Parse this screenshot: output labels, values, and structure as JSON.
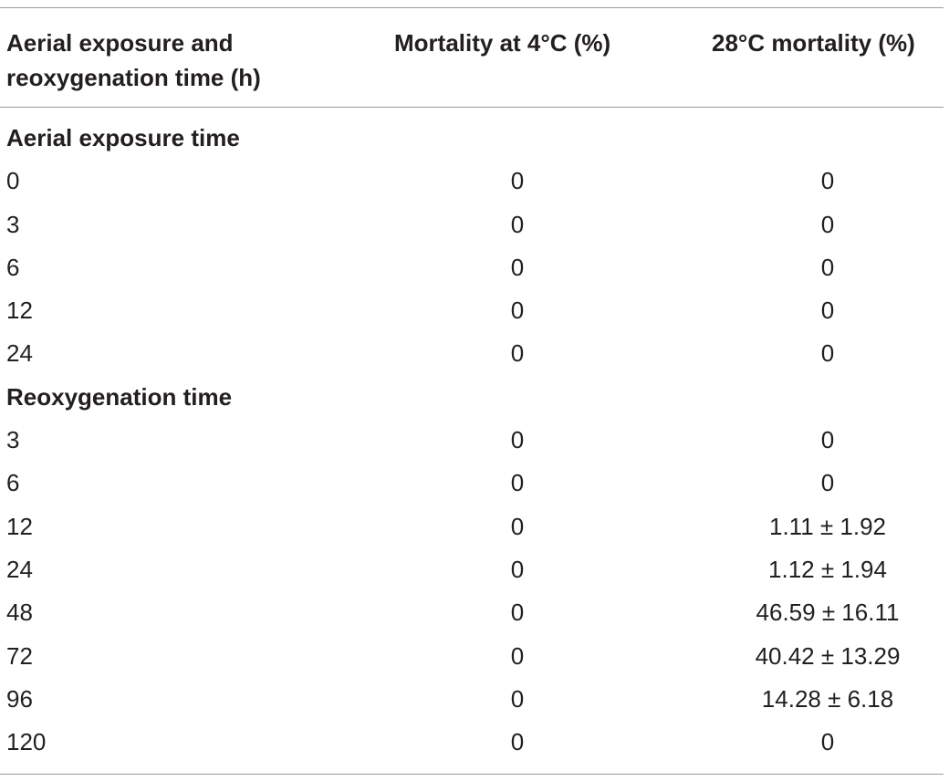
{
  "table": {
    "headers": {
      "col1_line1": "Aerial exposure and",
      "col1_line2": "reoxygenation time (h)",
      "col2": "Mortality at 4°C (%)",
      "col3": "28°C mortality (%)"
    },
    "sections": [
      {
        "label": "Aerial exposure time",
        "rows": [
          {
            "time": "0",
            "m4": "0",
            "m28": "0"
          },
          {
            "time": "3",
            "m4": "0",
            "m28": "0"
          },
          {
            "time": "6",
            "m4": "0",
            "m28": "0"
          },
          {
            "time": "12",
            "m4": "0",
            "m28": "0"
          },
          {
            "time": "24",
            "m4": "0",
            "m28": "0"
          }
        ]
      },
      {
        "label": "Reoxygenation time",
        "rows": [
          {
            "time": "3",
            "m4": "0",
            "m28": "0"
          },
          {
            "time": "6",
            "m4": "0",
            "m28": "0"
          },
          {
            "time": "12",
            "m4": "0",
            "m28": "1.11 ± 1.92"
          },
          {
            "time": "24",
            "m4": "0",
            "m28": "1.12 ± 1.94"
          },
          {
            "time": "48",
            "m4": "0",
            "m28": "46.59 ± 16.11"
          },
          {
            "time": "72",
            "m4": "0",
            "m28": "40.42 ± 13.29"
          },
          {
            "time": "96",
            "m4": "0",
            "m28": "14.28 ± 6.18"
          },
          {
            "time": "120",
            "m4": "0",
            "m28": "0"
          }
        ]
      }
    ]
  }
}
